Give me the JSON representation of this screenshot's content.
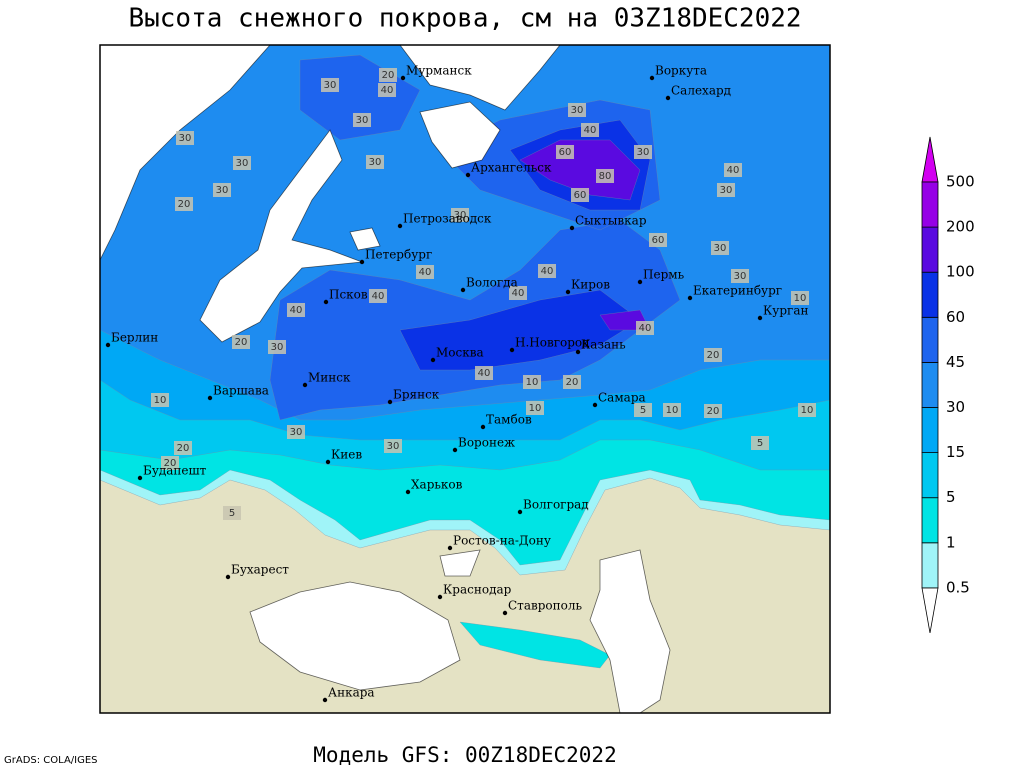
{
  "title": "Высота снежного покрова, см на 03Z18DEC2022",
  "subtitle": "Модель GFS: 00Z18DEC2022",
  "credit": "GrADS: COLA/IGES",
  "legend": {
    "levels": [
      0.5,
      1,
      5,
      15,
      30,
      45,
      60,
      100,
      200,
      500
    ],
    "colors": [
      "#ffffff",
      "#a0f4f8",
      "#00e4e4",
      "#00c8f0",
      "#00a8f5",
      "#1e8cf0",
      "#1e64ee",
      "#0a32e6",
      "#5a0ae0",
      "#9600e6",
      "#d200f0"
    ]
  },
  "land_color": "#e4e2c4",
  "cities": [
    "Мурманск",
    "Воркута",
    "Салехард",
    "Архангельск",
    "Сыктывкар",
    "Петрозаводск",
    "Петербург",
    "Вологда",
    "Киров",
    "Пермь",
    "Екатеринбург",
    "Курган",
    "Псков",
    "Берлин",
    "Москва",
    "Н.Новгород",
    "Казань",
    "Минск",
    "Варшава",
    "Брянск",
    "Тамбов",
    "Самара",
    "Киев",
    "Воронеж",
    "Будапешт",
    "Харьков",
    "Волгоград",
    "Ростов-на-Дону",
    "Бухарест",
    "Краснодар",
    "Ставрополь",
    "Анкара"
  ],
  "contour_labels": [
    30,
    40,
    20,
    30,
    30,
    30,
    30,
    20,
    30,
    40,
    30,
    60,
    80,
    60,
    30,
    40,
    30,
    30,
    60,
    30,
    30,
    40,
    40,
    40,
    40,
    40,
    20,
    30,
    10,
    40,
    20,
    40,
    10,
    20,
    10,
    5,
    10,
    20,
    30,
    20,
    20,
    5,
    5,
    10,
    30,
    10
  ]
}
